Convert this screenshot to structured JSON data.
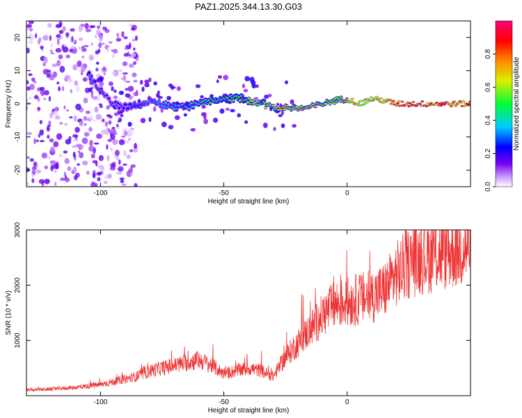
{
  "title": "PAZ1.2025.344.13.30.G03",
  "chart_data": [
    {
      "type": "heatmap",
      "title": "PAZ1.2025.344.13.30.G03",
      "xlabel": "Height of straight line (km)",
      "ylabel": "Frequency (Hz)",
      "xlim": [
        -130,
        50
      ],
      "ylim": [
        -25,
        25
      ],
      "xticks": [
        -100,
        -50,
        0
      ],
      "yticks": [
        -20,
        -10,
        0,
        10,
        20
      ],
      "colorbar": {
        "label": "Normalized spectral amplitude",
        "range": [
          0,
          1
        ],
        "ticks": [
          0.0,
          0.2,
          0.4,
          0.6,
          0.8
        ],
        "tick_labels": [
          "0.0",
          "0.2",
          "0.4",
          "0.6",
          "0.8"
        ],
        "colormap": "rainbow (white-violet-blue-cyan-green-yellow-red-magenta)"
      },
      "ridge": {
        "description": "Dominant frequency track of normalized spectral amplitude vs height",
        "x": [
          -105,
          -100,
          -95,
          -90,
          -85,
          -80,
          -75,
          -70,
          -65,
          -60,
          -55,
          -50,
          -45,
          -40,
          -35,
          -30,
          -25,
          -20,
          -15,
          -10,
          -5,
          0,
          5,
          10,
          15,
          20,
          25,
          30,
          35,
          40,
          45,
          50
        ],
        "freq": [
          9,
          4,
          0,
          -1,
          0,
          1,
          0,
          -1,
          -1,
          0,
          1,
          1,
          2,
          1,
          0,
          -1,
          -1,
          -1.5,
          -1,
          0,
          1,
          1.5,
          0,
          1.5,
          1,
          0,
          0,
          0,
          0,
          0,
          0,
          0
        ],
        "amplitude": [
          0.3,
          0.25,
          0.2,
          0.25,
          0.3,
          0.3,
          0.35,
          0.4,
          0.45,
          0.45,
          0.5,
          0.55,
          0.6,
          0.6,
          0.65,
          0.65,
          0.7,
          0.75,
          0.7,
          0.7,
          0.6,
          0.7,
          0.75,
          0.7,
          0.75,
          0.85,
          0.95,
          0.95,
          0.9,
          0.9,
          0.85,
          0.85
        ]
      },
      "noise_region": {
        "x_range": [
          -130,
          -85
        ],
        "freq_range": [
          -25,
          25
        ],
        "amplitude": 0.1
      }
    },
    {
      "type": "line",
      "xlabel": "Height of straight line (km)",
      "ylabel": "SNR (10 * v/v)",
      "xlim": [
        -130,
        50
      ],
      "ylim": [
        0,
        3000
      ],
      "xticks": [
        -100,
        -50,
        0
      ],
      "yticks": [
        1000,
        2000,
        3000
      ],
      "series": [
        {
          "name": "SNR",
          "color": "#ee3333",
          "x": [
            -130,
            -120,
            -110,
            -100,
            -95,
            -90,
            -85,
            -80,
            -75,
            -70,
            -65,
            -60,
            -55,
            -50,
            -45,
            -40,
            -35,
            -30,
            -25,
            -20,
            -15,
            -10,
            -5,
            0,
            5,
            10,
            15,
            20,
            25,
            30,
            35,
            40,
            45,
            50
          ],
          "y": [
            100,
            120,
            150,
            200,
            250,
            300,
            350,
            450,
            500,
            550,
            600,
            650,
            550,
            400,
            450,
            500,
            450,
            350,
            700,
            950,
            1200,
            1450,
            1650,
            1700,
            1750,
            1800,
            1900,
            2200,
            2400,
            2500,
            2550,
            2600,
            2650,
            2700
          ]
        }
      ]
    }
  ]
}
